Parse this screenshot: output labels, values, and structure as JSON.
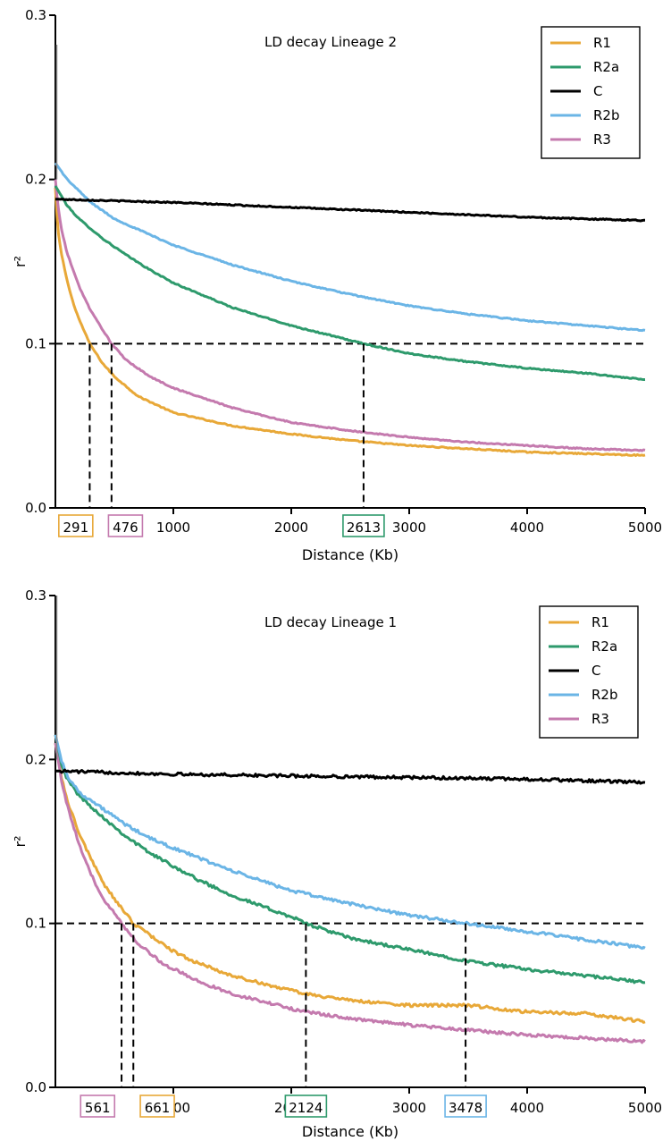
{
  "chart_data": [
    {
      "type": "line",
      "title": "LD decay Lineage 2",
      "xlabel": "Distance (Kb)",
      "ylabel": "r²",
      "xlim": [
        0,
        5000
      ],
      "ylim": [
        0,
        0.3
      ],
      "xticks": [
        "1000",
        "2000",
        "3000",
        "4000",
        "5000"
      ],
      "yticks": [
        "0.0",
        "0.1",
        "0.2",
        "0.3"
      ],
      "legend_position": "top-right",
      "threshold": 0.1,
      "series": [
        {
          "name": "R1",
          "color": "#E8A838",
          "x": [
            0,
            20,
            50,
            100,
            150,
            200,
            291,
            400,
            500,
            700,
            1000,
            1500,
            2000,
            2500,
            3000,
            3500,
            4000,
            4500,
            5000
          ],
          "y": [
            0.195,
            0.17,
            0.155,
            0.138,
            0.125,
            0.115,
            0.1,
            0.088,
            0.08,
            0.068,
            0.058,
            0.05,
            0.045,
            0.041,
            0.038,
            0.036,
            0.034,
            0.033,
            0.032
          ]
        },
        {
          "name": "R2a",
          "color": "#2E9A6C",
          "x": [
            0,
            100,
            200,
            400,
            600,
            800,
            1000,
            1500,
            2000,
            2613,
            3000,
            3500,
            4000,
            4500,
            5000
          ],
          "y": [
            0.196,
            0.184,
            0.176,
            0.164,
            0.154,
            0.145,
            0.137,
            0.122,
            0.111,
            0.1,
            0.094,
            0.089,
            0.085,
            0.082,
            0.078
          ]
        },
        {
          "name": "C",
          "color": "#000000",
          "x": [
            0,
            1000,
            2000,
            3000,
            4000,
            5000
          ],
          "y": [
            0.188,
            0.186,
            0.183,
            0.18,
            0.177,
            0.175
          ]
        },
        {
          "name": "R2b",
          "color": "#6BB5E6",
          "x": [
            0,
            100,
            300,
            500,
            1000,
            1500,
            2000,
            2500,
            3000,
            3500,
            4000,
            4500,
            5000
          ],
          "y": [
            0.21,
            0.2,
            0.186,
            0.176,
            0.16,
            0.148,
            0.138,
            0.13,
            0.123,
            0.118,
            0.114,
            0.111,
            0.108
          ]
        },
        {
          "name": "R3",
          "color": "#C47AAE",
          "x": [
            0,
            20,
            50,
            100,
            200,
            300,
            476,
            600,
            800,
            1000,
            1500,
            2000,
            2500,
            3000,
            3500,
            4000,
            4500,
            5000
          ],
          "y": [
            0.2,
            0.185,
            0.17,
            0.155,
            0.135,
            0.12,
            0.1,
            0.09,
            0.08,
            0.073,
            0.061,
            0.052,
            0.047,
            0.043,
            0.04,
            0.038,
            0.036,
            0.035
          ]
        }
      ],
      "spike": {
        "x": 0,
        "y": 0.282
      },
      "markers": [
        {
          "value": 291,
          "label": "291",
          "color": "#E8A838"
        },
        {
          "value": 476,
          "label": "476",
          "color": "#C47AAE"
        },
        {
          "value": 2613,
          "label": "2613",
          "color": "#2E9A6C"
        }
      ]
    },
    {
      "type": "line",
      "title": "LD decay Lineage 1",
      "xlabel": "Distance (Kb)",
      "ylabel": "r²",
      "xlim": [
        0,
        5000
      ],
      "ylim": [
        0,
        0.3
      ],
      "xticks": [
        "1000",
        "2000",
        "3000",
        "4000",
        "5000"
      ],
      "yticks": [
        "0.0",
        "0.1",
        "0.2",
        "0.3"
      ],
      "legend_position": "top-right",
      "threshold": 0.1,
      "series": [
        {
          "name": "R1",
          "color": "#E8A838",
          "x": [
            0,
            50,
            100,
            200,
            300,
            400,
            500,
            661,
            800,
            1000,
            1200,
            1500,
            2000,
            2124,
            2500,
            3000,
            3500,
            4000,
            4500,
            5000
          ],
          "y": [
            0.21,
            0.19,
            0.175,
            0.155,
            0.14,
            0.125,
            0.115,
            0.1,
            0.093,
            0.083,
            0.076,
            0.068,
            0.059,
            0.057,
            0.053,
            0.05,
            0.05,
            0.046,
            0.045,
            0.04
          ]
        },
        {
          "name": "R2a",
          "color": "#2E9A6C",
          "x": [
            0,
            50,
            100,
            200,
            400,
            600,
            800,
            1000,
            1200,
            1500,
            2000,
            2124,
            2500,
            3000,
            3500,
            4000,
            4500,
            5000
          ],
          "y": [
            0.215,
            0.198,
            0.188,
            0.178,
            0.165,
            0.153,
            0.143,
            0.135,
            0.127,
            0.117,
            0.104,
            0.1,
            0.091,
            0.084,
            0.077,
            0.072,
            0.068,
            0.064
          ]
        },
        {
          "name": "C",
          "color": "#000000",
          "x": [
            0,
            1000,
            2000,
            3000,
            4000,
            5000
          ],
          "y": [
            0.193,
            0.191,
            0.19,
            0.189,
            0.188,
            0.186
          ]
        },
        {
          "name": "R2b",
          "color": "#6BB5E6",
          "x": [
            0,
            50,
            100,
            200,
            400,
            600,
            800,
            1000,
            1500,
            2000,
            2500,
            3000,
            3478,
            4000,
            4500,
            5000
          ],
          "y": [
            0.215,
            0.2,
            0.19,
            0.18,
            0.17,
            0.16,
            0.152,
            0.146,
            0.132,
            0.12,
            0.112,
            0.105,
            0.1,
            0.095,
            0.09,
            0.085
          ]
        },
        {
          "name": "R3",
          "color": "#C47AAE",
          "x": [
            0,
            50,
            100,
            200,
            300,
            400,
            561,
            700,
            900,
            1200,
            1500,
            2000,
            2124,
            2500,
            3000,
            3478,
            4000,
            4500,
            5000
          ],
          "y": [
            0.21,
            0.188,
            0.172,
            0.148,
            0.13,
            0.116,
            0.1,
            0.088,
            0.076,
            0.065,
            0.057,
            0.048,
            0.046,
            0.042,
            0.038,
            0.035,
            0.032,
            0.03,
            0.028
          ]
        }
      ],
      "spike": {
        "x": 0,
        "y": 0.3
      },
      "markers": [
        {
          "value": 561,
          "label": "561",
          "color": "#C47AAE"
        },
        {
          "value": 661,
          "label": "661",
          "color": "#E8A838"
        },
        {
          "value": 2124,
          "label": "2124",
          "color": "#2E9A6C"
        },
        {
          "value": 3478,
          "label": "3478",
          "color": "#6BB5E6"
        }
      ]
    }
  ]
}
